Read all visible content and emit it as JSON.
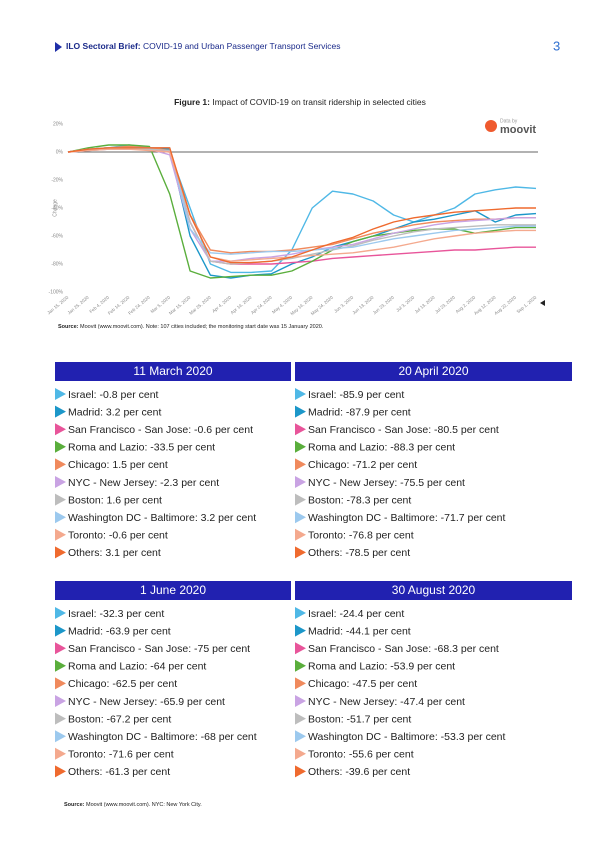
{
  "header": {
    "label": "ILO Sectoral Brief:",
    "title": "COVID-19 and Urban Passenger Transport Services",
    "page": "3"
  },
  "figure": {
    "caption_label": "Figure 1:",
    "caption": "Impact of COVID-19 on transit ridership in selected cities",
    "source_label": "Source:",
    "source": "Moovit (www.moovit.com). Note: 107 cities included; the monitoring start date was 15 January 2020."
  },
  "chart_data": {
    "type": "line",
    "y_label": "Change",
    "logo_small": "Data by",
    "logo": "moovit",
    "zero_line": true,
    "grid": false,
    "ylim": [
      -100,
      20
    ],
    "yticks": [
      {
        "value": 20,
        "label": "20%"
      },
      {
        "value": 0,
        "label": "0%"
      },
      {
        "value": -20,
        "label": "-20%"
      },
      {
        "value": -40,
        "label": "-40%"
      },
      {
        "value": -60,
        "label": "-60%"
      },
      {
        "value": -80,
        "label": "-80%"
      },
      {
        "value": -100,
        "label": "-100%"
      }
    ],
    "categories": [
      "Jan 15, 2020",
      "Jan 25, 2020",
      "Feb 4, 2020",
      "Feb 14, 2020",
      "Feb 24, 2020",
      "Mar 5, 2020",
      "Mar 15, 2020",
      "Mar 25, 2020",
      "Apr 4, 2020",
      "Apr 14, 2020",
      "Apr 24, 2020",
      "May 4, 2020",
      "May 14, 2020",
      "May 24, 2020",
      "Jun 3, 2020",
      "Jun 13, 2020",
      "Jun 23, 2020",
      "Jul 3, 2020",
      "Jul 13, 2020",
      "Jul 23, 2020",
      "Aug 2, 2020",
      "Aug 12, 2020",
      "Aug 22, 2020",
      "Sep 1, 2020"
    ],
    "series": [
      {
        "name": "Israel",
        "color": "#4fb8e6",
        "values": [
          0,
          2,
          3,
          5,
          3,
          0,
          -40,
          -80,
          -86,
          -86,
          -85,
          -70,
          -40,
          -28,
          -30,
          -35,
          -45,
          -50,
          -45,
          -40,
          -30,
          -27,
          -25,
          -26
        ]
      },
      {
        "name": "Madrid",
        "color": "#1c97c9",
        "values": [
          0,
          2,
          3,
          3,
          3,
          2,
          -60,
          -88,
          -90,
          -88,
          -87,
          -80,
          -75,
          -68,
          -64,
          -60,
          -55,
          -50,
          -48,
          -45,
          -42,
          -50,
          -45,
          -44
        ]
      },
      {
        "name": "San Francisco - San Jose",
        "color": "#e8559a",
        "values": [
          0,
          1,
          3,
          2,
          2,
          0,
          -50,
          -78,
          -80,
          -80,
          -80,
          -79,
          -78,
          -76,
          -75,
          -74,
          -73,
          -72,
          -71,
          -70,
          -70,
          -69,
          -68,
          -68
        ]
      },
      {
        "name": "Roma and Lazio",
        "color": "#5aae3c",
        "values": [
          0,
          3,
          5,
          5,
          4,
          -30,
          -85,
          -90,
          -89,
          -88,
          -88,
          -85,
          -78,
          -70,
          -64,
          -60,
          -58,
          -56,
          -55,
          -55,
          -58,
          -56,
          -54,
          -54
        ]
      },
      {
        "name": "Chicago",
        "color": "#f08a5d",
        "values": [
          0,
          2,
          3,
          4,
          3,
          1,
          -45,
          -70,
          -72,
          -71,
          -71,
          -70,
          -68,
          -66,
          -62,
          -58,
          -55,
          -52,
          -50,
          -49,
          -48,
          -48,
          -47,
          -47
        ]
      },
      {
        "name": "NYC - New Jersey",
        "color": "#c9a3e3",
        "values": [
          0,
          1,
          2,
          2,
          2,
          -2,
          -55,
          -78,
          -78,
          -76,
          -75,
          -73,
          -70,
          -68,
          -66,
          -62,
          -58,
          -55,
          -52,
          -50,
          -49,
          -48,
          -47,
          -47
        ]
      },
      {
        "name": "Boston",
        "color": "#bdbdbd",
        "values": [
          0,
          1,
          2,
          2,
          2,
          1,
          -50,
          -78,
          -80,
          -79,
          -78,
          -76,
          -73,
          -70,
          -67,
          -63,
          -60,
          -57,
          -55,
          -54,
          -53,
          -52,
          -52,
          -52
        ]
      },
      {
        "name": "Washington DC - Baltimore",
        "color": "#9cc9ee",
        "values": [
          0,
          2,
          3,
          3,
          3,
          3,
          -55,
          -72,
          -73,
          -72,
          -71,
          -71,
          -70,
          -69,
          -68,
          -65,
          -62,
          -60,
          -58,
          -56,
          -55,
          -54,
          -53,
          -53
        ]
      },
      {
        "name": "Toronto",
        "color": "#f4a98e",
        "values": [
          0,
          1,
          2,
          2,
          1,
          0,
          -45,
          -75,
          -78,
          -77,
          -76,
          -75,
          -74,
          -73,
          -72,
          -70,
          -68,
          -65,
          -62,
          -60,
          -58,
          -57,
          -56,
          -56
        ]
      },
      {
        "name": "Others",
        "color": "#ef6a2e",
        "values": [
          0,
          2,
          3,
          3,
          3,
          3,
          -45,
          -75,
          -79,
          -79,
          -78,
          -75,
          -70,
          -65,
          -61,
          -55,
          -50,
          -47,
          -45,
          -43,
          -42,
          -41,
          -40,
          -40
        ]
      }
    ]
  },
  "panels": [
    {
      "title": "11 March 2020",
      "items": [
        "Israel: -0.8 per cent",
        "Madrid: 3.2 per cent",
        "San Francisco - San Jose: -0.6 per cent",
        "Roma and Lazio: -33.5 per cent",
        "Chicago: 1.5 per cent",
        "NYC - New Jersey: -2.3 per cent",
        "Boston: 1.6 per cent",
        "Washington DC - Baltimore: 3.2 per cent",
        "Toronto: -0.6 per cent",
        "Others: 3.1 per cent"
      ]
    },
    {
      "title": "20 April 2020",
      "items": [
        "Israel: -85.9 per cent",
        "Madrid: -87.9 per cent",
        "San Francisco - San Jose: -80.5 per cent",
        "Roma and Lazio: -88.3 per cent",
        "Chicago: -71.2 per cent",
        "NYC - New Jersey: -75.5 per cent",
        "Boston: -78.3 per cent",
        "Washington DC - Baltimore: -71.7 per cent",
        "Toronto: -76.8 per cent",
        "Others: -78.5 per cent"
      ]
    },
    {
      "title": "1 June 2020",
      "items": [
        "Israel: -32.3 per cent",
        "Madrid: -63.9 per cent",
        "San Francisco - San Jose: -75 per cent",
        "Roma and Lazio: -64 per cent",
        "Chicago: -62.5 per cent",
        "NYC - New Jersey: -65.9 per cent",
        "Boston: -67.2 per cent",
        "Washington DC - Baltimore: -68 per cent",
        "Toronto: -71.6 per cent",
        "Others: -61.3 per cent"
      ]
    },
    {
      "title": "30 August 2020",
      "items": [
        "Israel: -24.4 per cent",
        "Madrid: -44.1 per cent",
        "San Francisco - San Jose: -68.3 per cent",
        "Roma and Lazio: -53.9 per cent",
        "Chicago: -47.5 per cent",
        "NYC - New Jersey: -47.4 per cent",
        "Boston: -51.7 per cent",
        "Washington DC - Baltimore: -53.3 per cent",
        "Toronto: -55.6 per cent",
        "Others: -39.6 per cent"
      ]
    }
  ],
  "footer": {
    "source_label": "Source:",
    "source": "Moovit (www.moovit.com). NYC: New York City."
  }
}
